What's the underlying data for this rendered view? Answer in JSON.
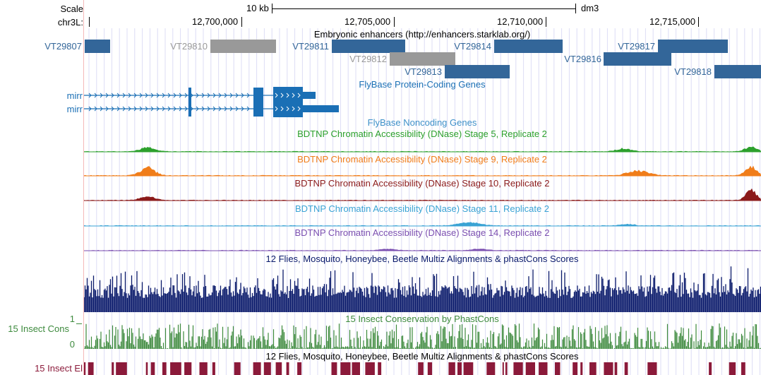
{
  "ruler": {
    "scale_label": "Scale",
    "chrom_label": "chr3L:",
    "scale_bar_label": "10 kb",
    "assembly": "dm3",
    "positions": [
      "12,700,000",
      "12,705,000",
      "12,710,000",
      "12,715,000"
    ]
  },
  "enhancers": {
    "title": "Embryonic enhancers (http://enhancers.starklab.org/)",
    "items": [
      {
        "name": "VT29807",
        "color": "#336699"
      },
      {
        "name": "VT29810",
        "color": "#999999"
      },
      {
        "name": "VT29811",
        "color": "#336699"
      },
      {
        "name": "VT29812",
        "color": "#999999"
      },
      {
        "name": "VT29813",
        "color": "#336699"
      },
      {
        "name": "VT29814",
        "color": "#336699"
      },
      {
        "name": "VT29816",
        "color": "#336699"
      },
      {
        "name": "VT29817",
        "color": "#336699"
      },
      {
        "name": "VT29818",
        "color": "#336699"
      }
    ]
  },
  "genes": {
    "title": "FlyBase Protein-Coding Genes",
    "color": "#1a6fb5",
    "items": [
      {
        "name": "mirr"
      },
      {
        "name": "mirr"
      }
    ]
  },
  "noncoding": {
    "title": "FlyBase Noncoding Genes",
    "color": "#3e90c9"
  },
  "dnase": [
    {
      "title": "BDTNP Chromatin Accessibility (DNase) Stage 5, Replicate 2",
      "color": "#2ca02c"
    },
    {
      "title": "BDTNP Chromatin Accessibility (DNase) Stage 9, Replicate 2",
      "color": "#f07d1a"
    },
    {
      "title": "BDTNP Chromatin Accessibility (DNase) Stage 10, Replicate 2",
      "color": "#8b1a1a"
    },
    {
      "title": "BDTNP Chromatin Accessibility (DNase) Stage 11, Replicate 2",
      "color": "#3aa3d4"
    },
    {
      "title": "BDTNP Chromatin Accessibility (DNase) Stage 14, Replicate 2",
      "color": "#7b4fb0"
    }
  ],
  "multiz": {
    "title": "12 Flies, Mosquito, Honeybee, Beetle Multiz Alignments & phastCons Scores",
    "color": "#0a1a6b"
  },
  "phastcons": {
    "title": "15 Insect Conservation by PhastCons",
    "side_label": "15 Insect Cons",
    "axis_max": "1",
    "axis_min": "0",
    "color": "#3d8a3d"
  },
  "elements": {
    "title": "12 Flies, Mosquito, Honeybee, Beetle Multiz Alignments & phastCons Scores",
    "side_label": "15 Insect El",
    "color": "#8b1a3a"
  }
}
